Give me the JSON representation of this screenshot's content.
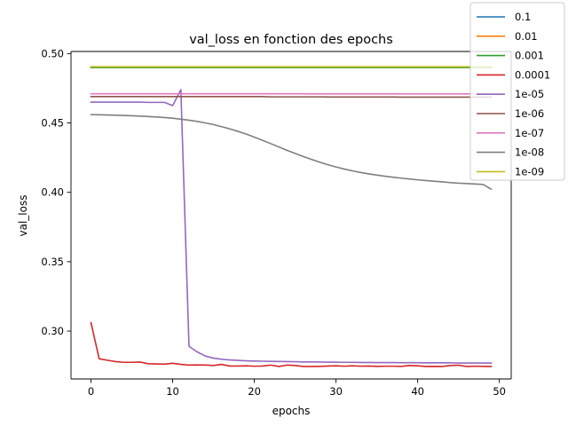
{
  "chart_data": {
    "type": "line",
    "title": "val_loss en fonction des epochs",
    "xlabel": "epochs",
    "ylabel": "val_loss",
    "xlim": [
      -2.45,
      51.45
    ],
    "ylim": [
      0.2655,
      0.5015
    ],
    "xticks": [
      0,
      10,
      20,
      30,
      40,
      50
    ],
    "yticks": [
      0.3,
      0.35,
      0.4,
      0.45,
      0.5
    ],
    "ytick_labels": [
      "0.30",
      "0.35",
      "0.40",
      "0.45",
      "0.50"
    ],
    "grid": false,
    "legend_placement": "top-right",
    "series": [
      {
        "name": "0.1",
        "color": "#1f77b4",
        "x_start": 0,
        "values": [
          0.49,
          0.49,
          0.49,
          0.49,
          0.49,
          0.49,
          0.49,
          0.49,
          0.49,
          0.49,
          0.49,
          0.49,
          0.49,
          0.49,
          0.49,
          0.49,
          0.49,
          0.49,
          0.49,
          0.49,
          0.49,
          0.49,
          0.49,
          0.49,
          0.49,
          0.49,
          0.49,
          0.49,
          0.49,
          0.49,
          0.49,
          0.49,
          0.49,
          0.49,
          0.49,
          0.49,
          0.49,
          0.49,
          0.49,
          0.49,
          0.49,
          0.49,
          0.49,
          0.49,
          0.49,
          0.49,
          0.49,
          0.49,
          0.49,
          0.49
        ]
      },
      {
        "name": "0.01",
        "color": "#ff7f0e",
        "x_start": 0,
        "values": [
          0.49,
          0.49,
          0.49,
          0.49,
          0.49,
          0.49,
          0.49,
          0.49,
          0.49,
          0.49,
          0.49,
          0.49,
          0.49,
          0.49,
          0.49,
          0.49,
          0.49,
          0.49,
          0.49,
          0.49,
          0.49,
          0.49,
          0.49,
          0.49,
          0.49,
          0.49,
          0.49,
          0.49,
          0.49,
          0.49,
          0.49,
          0.49,
          0.49,
          0.49,
          0.49,
          0.49,
          0.49,
          0.49,
          0.49,
          0.49,
          0.49,
          0.49,
          0.49,
          0.49,
          0.49,
          0.49,
          0.49,
          0.49,
          0.49,
          0.49
        ]
      },
      {
        "name": "0.001",
        "color": "#2ca02c",
        "x_start": 0,
        "values": [
          0.49,
          0.49,
          0.49,
          0.49,
          0.49,
          0.49,
          0.49,
          0.49,
          0.49,
          0.49,
          0.49,
          0.49,
          0.49,
          0.49,
          0.49,
          0.49,
          0.49,
          0.49,
          0.49,
          0.49,
          0.49,
          0.49,
          0.49,
          0.49,
          0.49,
          0.49,
          0.49,
          0.49,
          0.49,
          0.49,
          0.49,
          0.49,
          0.49,
          0.49,
          0.49,
          0.49,
          0.49,
          0.49,
          0.49,
          0.49,
          0.49,
          0.49,
          0.49,
          0.49,
          0.49,
          0.49,
          0.49,
          0.49,
          0.49,
          0.49
        ]
      },
      {
        "name": "0.0001",
        "color": "#d62728",
        "x_start": 0,
        "values": [
          0.306,
          0.28,
          0.279,
          0.278,
          0.2775,
          0.2775,
          0.2777,
          0.2765,
          0.2763,
          0.2762,
          0.2768,
          0.276,
          0.2755,
          0.2756,
          0.2755,
          0.2752,
          0.276,
          0.2748,
          0.2748,
          0.275,
          0.2747,
          0.2748,
          0.2755,
          0.2745,
          0.2755,
          0.2752,
          0.2745,
          0.2745,
          0.2746,
          0.2748,
          0.275,
          0.2747,
          0.275,
          0.2747,
          0.2748,
          0.2746,
          0.2747,
          0.2747,
          0.2746,
          0.2752,
          0.275,
          0.2745,
          0.2746,
          0.2745,
          0.2752,
          0.2754,
          0.2745,
          0.2747,
          0.2746,
          0.2745
        ]
      },
      {
        "name": "1e-05",
        "color": "#9467bd",
        "x_start": 0,
        "values": [
          0.465,
          0.465,
          0.465,
          0.465,
          0.465,
          0.465,
          0.465,
          0.4648,
          0.4648,
          0.4648,
          0.4625,
          0.474,
          0.289,
          0.285,
          0.282,
          0.2805,
          0.2797,
          0.2792,
          0.2789,
          0.2786,
          0.2784,
          0.2783,
          0.2782,
          0.2781,
          0.278,
          0.2779,
          0.2778,
          0.2778,
          0.2777,
          0.2776,
          0.2776,
          0.2775,
          0.2775,
          0.2774,
          0.2774,
          0.2773,
          0.2773,
          0.2773,
          0.2772,
          0.2772,
          0.2772,
          0.2771,
          0.2771,
          0.2771,
          0.2771,
          0.277,
          0.277,
          0.277,
          0.277,
          0.277
        ]
      },
      {
        "name": "1e-06",
        "color": "#8c564b",
        "x_start": 0,
        "values": [
          0.469,
          0.469,
          0.469,
          0.469,
          0.469,
          0.469,
          0.469,
          0.469,
          0.469,
          0.469,
          0.469,
          0.469,
          0.469,
          0.469,
          0.469,
          0.469,
          0.469,
          0.469,
          0.469,
          0.469,
          0.469,
          0.469,
          0.4688,
          0.4688,
          0.4688,
          0.4688,
          0.4688,
          0.4688,
          0.4688,
          0.4687,
          0.4687,
          0.4687,
          0.4687,
          0.4687,
          0.4687,
          0.4687,
          0.4687,
          0.4687,
          0.4686,
          0.4686,
          0.4686,
          0.4686,
          0.4686,
          0.4686,
          0.4686,
          0.4686,
          0.4686,
          0.4686,
          0.4686,
          0.4686
        ]
      },
      {
        "name": "1e-07",
        "color": "#e377c2",
        "x_start": 0,
        "values": [
          0.471,
          0.471,
          0.471,
          0.471,
          0.471,
          0.471,
          0.471,
          0.471,
          0.471,
          0.471,
          0.471,
          0.471,
          0.471,
          0.471,
          0.471,
          0.471,
          0.471,
          0.471,
          0.471,
          0.471,
          0.471,
          0.471,
          0.471,
          0.471,
          0.471,
          0.471,
          0.471,
          0.4709,
          0.4709,
          0.4709,
          0.4709,
          0.4709,
          0.4709,
          0.4709,
          0.4709,
          0.4709,
          0.4709,
          0.4709,
          0.4709,
          0.4709,
          0.4709,
          0.4709,
          0.4709,
          0.4709,
          0.4709,
          0.4709,
          0.4709,
          0.4709,
          0.4709,
          0.4709
        ]
      },
      {
        "name": "1e-08",
        "color": "#7f7f7f",
        "x_start": 0,
        "values": [
          0.456,
          0.4559,
          0.4557,
          0.4556,
          0.4554,
          0.4552,
          0.4549,
          0.4546,
          0.4543,
          0.4539,
          0.4534,
          0.4527,
          0.452,
          0.4511,
          0.45,
          0.4488,
          0.4473,
          0.4457,
          0.4439,
          0.442,
          0.4398,
          0.4375,
          0.4351,
          0.4327,
          0.4303,
          0.428,
          0.4258,
          0.4237,
          0.4217,
          0.4199,
          0.4183,
          0.4168,
          0.4155,
          0.4143,
          0.4133,
          0.4124,
          0.4116,
          0.4109,
          0.4102,
          0.4096,
          0.409,
          0.4085,
          0.408,
          0.4075,
          0.407,
          0.4066,
          0.4063,
          0.406,
          0.4057,
          0.4023
        ]
      },
      {
        "name": "1e-09",
        "color": "#bcbd22",
        "x_start": 0,
        "values": [
          0.4905,
          0.4905,
          0.4905,
          0.4905,
          0.4905,
          0.4905,
          0.4905,
          0.4905,
          0.4905,
          0.4905,
          0.4905,
          0.4905,
          0.4905,
          0.4905,
          0.4905,
          0.4905,
          0.4905,
          0.4905,
          0.4905,
          0.4905,
          0.4905,
          0.4905,
          0.4905,
          0.4905,
          0.4905,
          0.4905,
          0.4905,
          0.4905,
          0.4905,
          0.4905,
          0.4905,
          0.4905,
          0.4905,
          0.4905,
          0.4905,
          0.4905,
          0.4905,
          0.4905,
          0.4905,
          0.4905,
          0.4905,
          0.4905,
          0.4905,
          0.4905,
          0.4905,
          0.4905,
          0.4905,
          0.4905,
          0.4905,
          0.4905
        ]
      }
    ]
  }
}
